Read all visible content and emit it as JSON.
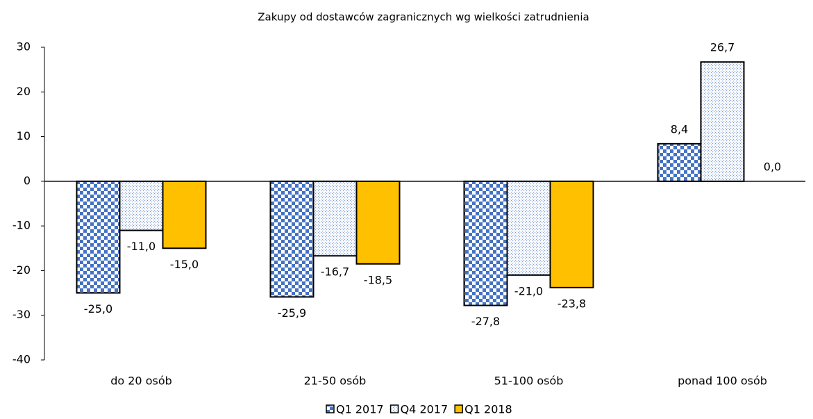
{
  "chart_data": {
    "type": "bar",
    "title": "Zakupy od dostawców zagranicznych wg wielkości zatrudnienia",
    "categories": [
      "do 20 osób",
      "21-50 osób",
      "51-100 osób",
      "ponad 100 osób"
    ],
    "series": [
      {
        "name": "Q1 2017",
        "color": "#4472c4",
        "pattern": "checker",
        "values": [
          -25.0,
          -25.9,
          -27.8,
          8.4
        ],
        "value_labels": [
          "-25,0",
          "-25,9",
          "-27,8",
          "8,4"
        ]
      },
      {
        "name": "Q4 2017",
        "color": "#4472c4",
        "pattern": "dots",
        "values": [
          -11.0,
          -16.7,
          -21.0,
          26.7
        ],
        "value_labels": [
          "-11,0",
          "-16,7",
          "-21,0",
          "26,7"
        ]
      },
      {
        "name": "Q1 2018",
        "color": "#ffc000",
        "pattern": "solid",
        "values": [
          -15.0,
          -18.5,
          -23.8,
          0.0
        ],
        "value_labels": [
          "-15,0",
          "-18,5",
          "-23,8",
          "0,0"
        ]
      }
    ],
    "ylim": [
      -40,
      30
    ],
    "yticks": [
      -40,
      -30,
      -20,
      -10,
      0,
      10,
      20,
      30
    ],
    "grid": false,
    "legend": "bottom"
  }
}
